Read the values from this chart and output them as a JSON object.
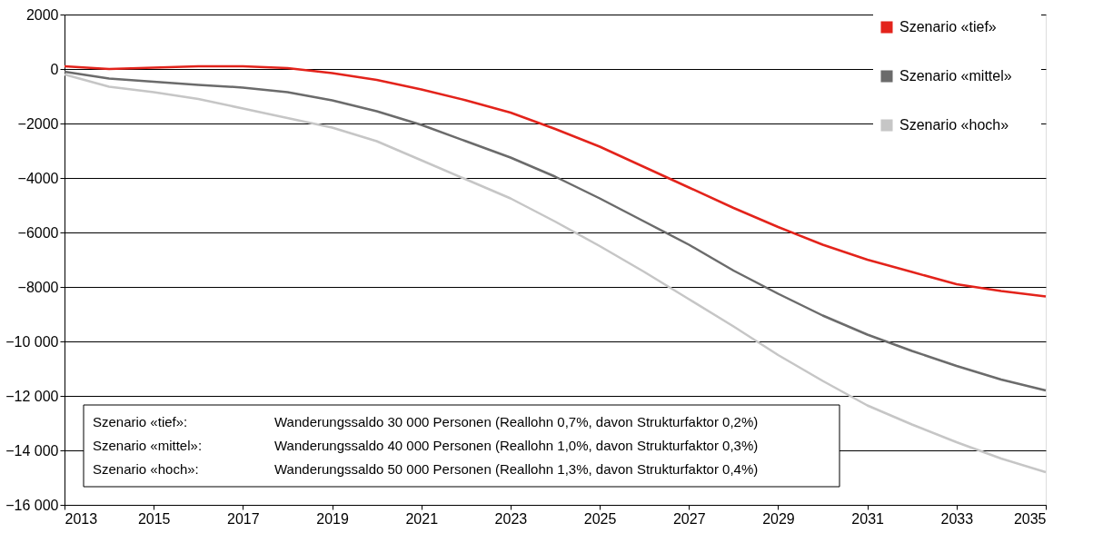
{
  "chart_data": {
    "type": "line",
    "x": [
      2013,
      2014,
      2015,
      2016,
      2017,
      2018,
      2019,
      2020,
      2021,
      2022,
      2023,
      2024,
      2025,
      2026,
      2027,
      2028,
      2029,
      2030,
      2031,
      2032,
      2033,
      2034,
      2035
    ],
    "series": [
      {
        "name": "Szenario «tief»",
        "color": "#e3231b",
        "values": [
          100,
          0,
          50,
          100,
          100,
          30,
          -150,
          -400,
          -750,
          -1150,
          -1600,
          -2200,
          -2850,
          -3600,
          -4350,
          -5100,
          -5800,
          -6450,
          -7000,
          -7450,
          -7900,
          -8150,
          -8350
        ]
      },
      {
        "name": "Szenario «mittel»",
        "color": "#6b6b6b",
        "values": [
          -100,
          -350,
          -470,
          -580,
          -680,
          -850,
          -1150,
          -1550,
          -2050,
          -2650,
          -3250,
          -3950,
          -4750,
          -5600,
          -6450,
          -7400,
          -8250,
          -9050,
          -9750,
          -10350,
          -10900,
          -11400,
          -11800
        ]
      },
      {
        "name": "Szenario «hoch»",
        "color": "#c6c6c6",
        "values": [
          -200,
          -650,
          -850,
          -1100,
          -1450,
          -1800,
          -2150,
          -2650,
          -3350,
          -4050,
          -4750,
          -5600,
          -6500,
          -7450,
          -8450,
          -9450,
          -10500,
          -11450,
          -12350,
          -13050,
          -13700,
          -14300,
          -14800
        ]
      }
    ],
    "xlim": [
      2013,
      2035
    ],
    "xticks": [
      2013,
      2015,
      2017,
      2019,
      2021,
      2023,
      2025,
      2027,
      2029,
      2031,
      2033,
      2035
    ],
    "ylim": [
      -16000,
      2000
    ],
    "yticks": [
      2000,
      0,
      {
        "value": -2000,
        "label": "−2000"
      },
      {
        "value": -4000,
        "label": "−4000"
      },
      {
        "value": -6000,
        "label": "−6000"
      },
      {
        "value": -8000,
        "label": "−8000"
      },
      {
        "value": -10000,
        "label": "−10 000"
      },
      {
        "value": -12000,
        "label": "−12 000"
      },
      {
        "value": -14000,
        "label": "−14 000"
      },
      {
        "value": -16000,
        "label": "−16 000"
      }
    ],
    "grid": "y",
    "legend": "top right",
    "marker": "none",
    "line_style": "solid",
    "annotations": [
      "Szenario «tief»:",
      "Wanderungssaldo 30 000 Personen (Reallohn 0,7%, davon Strukturfaktor 0,2%)",
      "Szenario «mittel»:",
      "Wanderungssaldo 40 000 Personen (Reallohn 1,0%, davon Strukturfaktor 0,3%)",
      "Szenario «hoch»:",
      "Wanderungssaldo 50 000 Personen (Reallohn 1,3%, davon Strukturfaktor 0,4%)"
    ]
  }
}
